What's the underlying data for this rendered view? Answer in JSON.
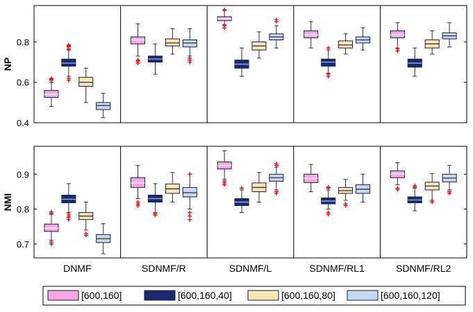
{
  "chart_data": {
    "type": "box",
    "methods": [
      "DNMF",
      "SDNMF/R",
      "SDNMF/L",
      "SDNMF/RL1",
      "SDNMF/RL2"
    ],
    "legend": {
      "entries": [
        "[600,160]",
        "[600,160,40]",
        "[600,160,80]",
        "[600,160,120]"
      ],
      "colors": [
        "#f7a8e4",
        "#1a2a6c",
        "#fbe6b4",
        "#c8d8f0"
      ]
    },
    "panels": [
      {
        "ylabel": "NP",
        "ylim": [
          0.4,
          0.98
        ],
        "yticks": [
          0.4,
          0.6,
          0.8
        ],
        "groups": [
          [
            {
              "whislo": 0.48,
              "q1": 0.525,
              "med": 0.54,
              "q3": 0.56,
              "whishi": 0.6,
              "fliers": [
                0.61,
                0.615,
                0.62
              ]
            },
            {
              "whislo": 0.63,
              "q1": 0.68,
              "med": 0.695,
              "q3": 0.715,
              "whishi": 0.76,
              "fliers": [
                0.61,
                0.62,
                0.765,
                0.775,
                0.78,
                0.785
              ]
            },
            {
              "whislo": 0.5,
              "q1": 0.58,
              "med": 0.6,
              "q3": 0.625,
              "whishi": 0.67,
              "fliers": []
            },
            {
              "whislo": 0.425,
              "q1": 0.465,
              "med": 0.485,
              "q3": 0.5,
              "whishi": 0.545,
              "fliers": []
            }
          ],
          [
            {
              "whislo": 0.73,
              "q1": 0.79,
              "med": 0.81,
              "q3": 0.825,
              "whishi": 0.89,
              "fliers": [
                0.695,
                0.705,
                0.71
              ]
            },
            {
              "whislo": 0.64,
              "q1": 0.7,
              "med": 0.715,
              "q3": 0.73,
              "whishi": 0.79,
              "fliers": []
            },
            {
              "whislo": 0.74,
              "q1": 0.78,
              "med": 0.795,
              "q3": 0.815,
              "whishi": 0.865,
              "fliers": []
            },
            {
              "whislo": 0.73,
              "q1": 0.775,
              "med": 0.795,
              "q3": 0.81,
              "whishi": 0.865,
              "fliers": [
                0.7,
                0.71,
                0.72
              ]
            }
          ],
          [
            {
              "whislo": 0.885,
              "q1": 0.905,
              "med": 0.915,
              "q3": 0.925,
              "whishi": 0.955,
              "fliers": [
                0.87,
                0.88,
                0.96
              ]
            },
            {
              "whislo": 0.63,
              "q1": 0.67,
              "med": 0.69,
              "q3": 0.71,
              "whishi": 0.77,
              "fliers": []
            },
            {
              "whislo": 0.72,
              "q1": 0.76,
              "med": 0.78,
              "q3": 0.8,
              "whishi": 0.85,
              "fliers": []
            },
            {
              "whislo": 0.77,
              "q1": 0.81,
              "med": 0.825,
              "q3": 0.84,
              "whishi": 0.88,
              "fliers": [
                0.9,
                0.91
              ]
            }
          ],
          [
            {
              "whislo": 0.77,
              "q1": 0.82,
              "med": 0.835,
              "q3": 0.855,
              "whishi": 0.9,
              "fliers": []
            },
            {
              "whislo": 0.645,
              "q1": 0.68,
              "med": 0.7,
              "q3": 0.715,
              "whishi": 0.76,
              "fliers": [
                0.63,
                0.64,
                0.77
              ]
            },
            {
              "whislo": 0.74,
              "q1": 0.77,
              "med": 0.785,
              "q3": 0.805,
              "whishi": 0.84,
              "fliers": []
            },
            {
              "whislo": 0.76,
              "q1": 0.795,
              "med": 0.81,
              "q3": 0.825,
              "whishi": 0.87,
              "fliers": []
            }
          ],
          [
            {
              "whislo": 0.77,
              "q1": 0.82,
              "med": 0.835,
              "q3": 0.855,
              "whishi": 0.895,
              "fliers": [
                0.755,
                0.765
              ]
            },
            {
              "whislo": 0.63,
              "q1": 0.675,
              "med": 0.695,
              "q3": 0.715,
              "whishi": 0.77,
              "fliers": []
            },
            {
              "whislo": 0.74,
              "q1": 0.77,
              "med": 0.79,
              "q3": 0.81,
              "whishi": 0.855,
              "fliers": []
            },
            {
              "whislo": 0.775,
              "q1": 0.815,
              "med": 0.83,
              "q3": 0.845,
              "whishi": 0.895,
              "fliers": []
            }
          ]
        ]
      },
      {
        "ylabel": "NMI",
        "ylim": [
          0.66,
          0.98
        ],
        "yticks": [
          0.7,
          0.8,
          0.9
        ],
        "groups": [
          [
            {
              "whislo": 0.71,
              "q1": 0.736,
              "med": 0.745,
              "q3": 0.757,
              "whishi": 0.785,
              "fliers": [
                0.7,
                0.705,
                0.788,
                0.792
              ]
            },
            {
              "whislo": 0.79,
              "q1": 0.818,
              "med": 0.828,
              "q3": 0.84,
              "whishi": 0.873,
              "fliers": [
                0.77,
                0.776,
                0.78,
                0.785
              ]
            },
            {
              "whislo": 0.74,
              "q1": 0.77,
              "med": 0.78,
              "q3": 0.79,
              "whishi": 0.82,
              "fliers": [
                0.725,
                0.73
              ]
            },
            {
              "whislo": 0.672,
              "q1": 0.704,
              "med": 0.715,
              "q3": 0.727,
              "whishi": 0.758,
              "fliers": []
            }
          ],
          [
            {
              "whislo": 0.83,
              "q1": 0.862,
              "med": 0.875,
              "q3": 0.89,
              "whishi": 0.925,
              "fliers": [
                0.81,
                0.815,
                0.82
              ]
            },
            {
              "whislo": 0.79,
              "q1": 0.82,
              "med": 0.83,
              "q3": 0.84,
              "whishi": 0.873,
              "fliers": [
                0.783,
                0.787
              ]
            },
            {
              "whislo": 0.82,
              "q1": 0.845,
              "med": 0.858,
              "q3": 0.872,
              "whishi": 0.905,
              "fliers": []
            },
            {
              "whislo": 0.8,
              "q1": 0.835,
              "med": 0.847,
              "q3": 0.862,
              "whishi": 0.9,
              "fliers": [
                0.77,
                0.78,
                0.79,
                0.9
              ]
            }
          ],
          [
            {
              "whislo": 0.885,
              "q1": 0.915,
              "med": 0.925,
              "q3": 0.935,
              "whishi": 0.967,
              "fliers": [
                0.87,
                0.875,
                0.88
              ]
            },
            {
              "whislo": 0.79,
              "q1": 0.81,
              "med": 0.82,
              "q3": 0.83,
              "whishi": 0.855,
              "fliers": [
                0.86
              ]
            },
            {
              "whislo": 0.82,
              "q1": 0.85,
              "med": 0.862,
              "q3": 0.875,
              "whishi": 0.905,
              "fliers": []
            },
            {
              "whislo": 0.855,
              "q1": 0.88,
              "med": 0.89,
              "q3": 0.9,
              "whishi": 0.92,
              "fliers": [
                0.845,
                0.85,
                0.925,
                0.93
              ]
            }
          ],
          [
            {
              "whislo": 0.85,
              "q1": 0.876,
              "med": 0.888,
              "q3": 0.9,
              "whishi": 0.928,
              "fliers": []
            },
            {
              "whislo": 0.8,
              "q1": 0.815,
              "med": 0.823,
              "q3": 0.832,
              "whishi": 0.855,
              "fliers": [
                0.785,
                0.79,
                0.86,
                0.863
              ]
            },
            {
              "whislo": 0.825,
              "q1": 0.845,
              "med": 0.853,
              "q3": 0.862,
              "whishi": 0.885,
              "fliers": [
                0.81,
                0.815
              ]
            },
            {
              "whislo": 0.82,
              "q1": 0.845,
              "med": 0.857,
              "q3": 0.87,
              "whishi": 0.9,
              "fliers": []
            }
          ],
          [
            {
              "whislo": 0.87,
              "q1": 0.89,
              "med": 0.9,
              "q3": 0.91,
              "whishi": 0.933,
              "fliers": [
                0.856,
                0.86
              ]
            },
            {
              "whislo": 0.795,
              "q1": 0.818,
              "med": 0.826,
              "q3": 0.835,
              "whishi": 0.86,
              "fliers": [
                0.863,
                0.867
              ]
            },
            {
              "whislo": 0.825,
              "q1": 0.855,
              "med": 0.866,
              "q3": 0.877,
              "whishi": 0.902,
              "fliers": [
                0.82,
                0.825
              ]
            },
            {
              "whislo": 0.855,
              "q1": 0.878,
              "med": 0.889,
              "q3": 0.9,
              "whishi": 0.925,
              "fliers": [
                0.845,
                0.85
              ]
            }
          ]
        ]
      }
    ]
  }
}
